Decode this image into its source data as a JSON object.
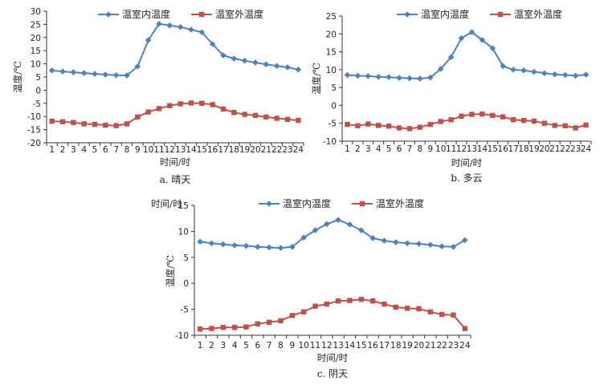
{
  "colors": {
    "indoor": "#4f81bd",
    "outdoor": "#c0504d",
    "axis": "#333333"
  },
  "chart_data": [
    {
      "type": "line",
      "caption": "a. 晴天",
      "xlabel": "时间/时",
      "ylabel": "温度/℃",
      "ylim": [
        -20,
        30
      ],
      "yticks": [
        -20,
        -15,
        -10,
        -5,
        0,
        5,
        10,
        15,
        20,
        25,
        30
      ],
      "x": [
        1,
        2,
        3,
        4,
        5,
        6,
        7,
        8,
        9,
        10,
        11,
        12,
        13,
        14,
        15,
        16,
        17,
        18,
        19,
        20,
        21,
        22,
        23,
        24
      ],
      "legend_position": "top",
      "series": [
        {
          "name": "温室内温度",
          "color": "#4f81bd",
          "marker": "diamond",
          "values": [
            7.5,
            7.1,
            6.8,
            6.5,
            6.2,
            5.9,
            5.7,
            5.6,
            9.0,
            19.0,
            25.2,
            24.6,
            24.0,
            23.0,
            22.0,
            17.5,
            13.2,
            12.0,
            11.2,
            10.5,
            9.8,
            9.2,
            8.7,
            7.8
          ]
        },
        {
          "name": "温室外温度",
          "color": "#c0504d",
          "marker": "square",
          "values": [
            -11.8,
            -12.0,
            -12.3,
            -12.8,
            -13.0,
            -13.3,
            -13.5,
            -12.8,
            -10.2,
            -8.3,
            -7.0,
            -5.9,
            -5.2,
            -4.9,
            -5.0,
            -5.5,
            -7.2,
            -8.5,
            -9.2,
            -9.6,
            -10.2,
            -10.7,
            -11.1,
            -11.5
          ]
        }
      ]
    },
    {
      "type": "line",
      "caption": "b. 多云",
      "xlabel": "时间/时",
      "ylabel": "温度/℃",
      "ylim": [
        -10,
        25
      ],
      "yticks": [
        -10,
        -5,
        0,
        5,
        10,
        15,
        20,
        25
      ],
      "x": [
        1,
        2,
        3,
        4,
        5,
        6,
        7,
        8,
        9,
        10,
        11,
        12,
        13,
        14,
        15,
        16,
        17,
        18,
        19,
        20,
        21,
        22,
        23,
        24
      ],
      "legend_position": "top",
      "series": [
        {
          "name": "温室内温度",
          "color": "#4f81bd",
          "marker": "diamond",
          "values": [
            8.5,
            8.3,
            8.2,
            8.0,
            7.9,
            7.7,
            7.6,
            7.5,
            7.8,
            10.2,
            13.5,
            18.8,
            20.5,
            18.3,
            16.0,
            11.0,
            10.0,
            9.8,
            9.4,
            9.0,
            8.7,
            8.5,
            8.3,
            8.6
          ]
        },
        {
          "name": "温室外温度",
          "color": "#c0504d",
          "marker": "square",
          "values": [
            -5.3,
            -5.7,
            -5.2,
            -5.6,
            -5.8,
            -6.3,
            -6.5,
            -6.1,
            -5.3,
            -4.5,
            -4.0,
            -3.0,
            -2.5,
            -2.4,
            -2.8,
            -3.2,
            -4.0,
            -4.2,
            -4.4,
            -5.0,
            -5.6,
            -5.7,
            -6.3,
            -5.5
          ]
        }
      ]
    },
    {
      "type": "line",
      "caption": "c. 阴天",
      "xlabel": "时间/时",
      "ylabel": "温度/℃",
      "corner_label": "时间/时",
      "ylim": [
        -10,
        15
      ],
      "yticks": [
        -10,
        -5,
        0,
        5,
        10,
        15
      ],
      "x": [
        1,
        2,
        3,
        4,
        5,
        6,
        7,
        8,
        9,
        10,
        11,
        12,
        13,
        14,
        15,
        16,
        17,
        18,
        19,
        20,
        21,
        22,
        23,
        24
      ],
      "legend_position": "top",
      "series": [
        {
          "name": "温室内温度",
          "color": "#4f81bd",
          "marker": "diamond",
          "values": [
            8.0,
            7.7,
            7.5,
            7.3,
            7.2,
            7.0,
            6.9,
            6.8,
            7.0,
            8.8,
            10.2,
            11.4,
            12.2,
            11.3,
            10.2,
            8.7,
            8.2,
            7.9,
            7.7,
            7.6,
            7.4,
            7.1,
            7.0,
            8.3
          ]
        },
        {
          "name": "温室外温度",
          "color": "#c0504d",
          "marker": "square",
          "values": [
            -8.8,
            -8.7,
            -8.5,
            -8.5,
            -8.4,
            -7.8,
            -7.5,
            -7.2,
            -6.2,
            -5.5,
            -4.4,
            -4.0,
            -3.4,
            -3.3,
            -3.1,
            -3.4,
            -4.0,
            -4.6,
            -4.8,
            -4.9,
            -5.5,
            -6.0,
            -6.1,
            -8.7
          ]
        }
      ]
    }
  ]
}
